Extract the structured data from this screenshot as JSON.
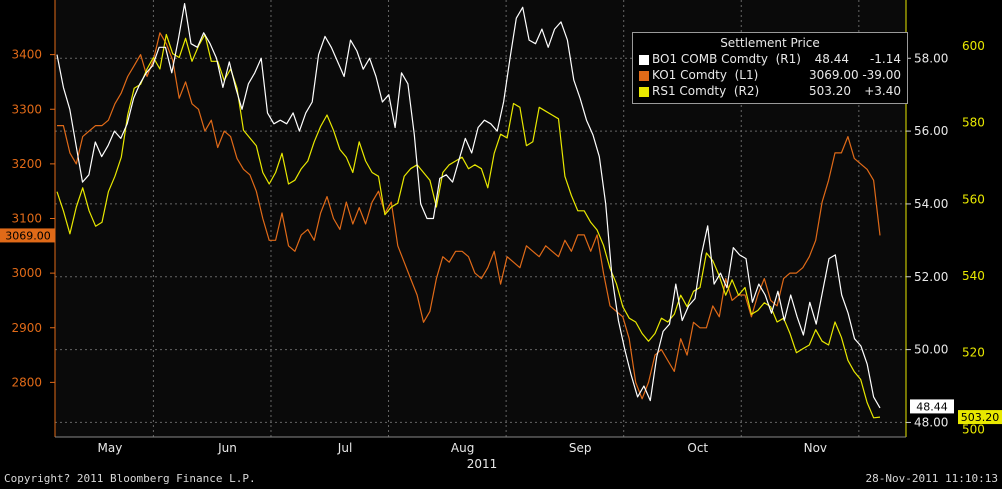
{
  "colors": {
    "background": "#000000",
    "plot_background": "#0a0a0a",
    "white_series": "#ffffff",
    "orange_series": "#e06a18",
    "yellow_series": "#e8e800",
    "left_axis": "#e06a18",
    "right_axis": "#e8e800",
    "grid": "#666666"
  },
  "footer": {
    "copyright": "Copyright? 2011 Bloomberg Finance L.P.",
    "timestamp": "28-Nov-2011 11:10:13"
  },
  "legend": {
    "title": "Settlement Price",
    "items": [
      {
        "name": "BO1 COMB Comdty  (R1)",
        "value": "48.44",
        "change": "-1.14",
        "color": "#ffffff"
      },
      {
        "name": "KO1 Comdty  (L1)",
        "value": "3069.00",
        "change": "-39.00",
        "color": "#e06a18"
      },
      {
        "name": "RS1 Comdty  (R2)",
        "value": "503.20",
        "change": "+3.40",
        "color": "#e8e800"
      }
    ]
  },
  "chart_data": {
    "type": "line",
    "title": "Settlement Price",
    "xlabel": "2011",
    "x_tick_labels": [
      "May",
      "Jun",
      "Jul",
      "Aug",
      "Sep",
      "Oct",
      "Nov"
    ],
    "y_left": {
      "series": "KO1 Comdty",
      "ticks": [
        2800,
        2900,
        3000,
        3100,
        3200,
        3300,
        3400
      ],
      "range": [
        2700,
        3500
      ]
    },
    "y_right1": {
      "series": "BO1 COMB Comdty",
      "ticks": [
        "48.00",
        "50.00",
        "52.00",
        "54.00",
        "56.00",
        "58.00"
      ],
      "range": [
        47.6,
        59.6
      ]
    },
    "y_right2": {
      "series": "RS1 Comdty",
      "ticks": [
        500,
        520,
        540,
        560,
        580,
        600
      ],
      "range": [
        498,
        612
      ]
    },
    "last_value_labels": {
      "left": "3069.00",
      "right1": "48.44",
      "right2": "503.20"
    },
    "grid": true,
    "legend_position": "top-right",
    "series": [
      {
        "name": "BO1 COMB Comdty",
        "axis": "right1",
        "values": [
          58.1,
          57.2,
          56.6,
          55.6,
          54.6,
          54.8,
          55.7,
          55.3,
          55.6,
          56.0,
          55.8,
          56.2,
          56.9,
          57.3,
          57.6,
          57.8,
          58.3,
          58.3,
          57.6,
          58.5,
          59.5,
          58.4,
          58.3,
          58.7,
          58.4,
          58.0,
          57.2,
          57.9,
          57.2,
          56.6,
          57.3,
          57.6,
          58.0,
          56.5,
          56.2,
          56.3,
          56.2,
          56.5,
          56.0,
          56.5,
          56.8,
          58.1,
          58.6,
          58.3,
          57.9,
          57.5,
          58.5,
          58.2,
          57.7,
          58.0,
          57.5,
          56.8,
          57.0,
          56.1,
          57.6,
          57.3,
          55.9,
          54.0,
          53.6,
          53.6,
          54.7,
          54.8,
          54.6,
          55.2,
          55.8,
          55.4,
          56.1,
          56.3,
          56.2,
          56.0,
          56.8,
          58.0,
          59.1,
          59.4,
          58.5,
          58.4,
          58.8,
          58.3,
          58.8,
          59.0,
          58.5,
          57.4,
          56.9,
          56.3,
          55.9,
          55.3,
          54.0,
          52.0,
          50.8,
          50.0,
          49.3,
          48.7,
          49.0,
          48.6,
          49.8,
          50.5,
          50.7,
          51.8,
          50.8,
          51.2,
          51.4,
          52.6,
          53.4,
          51.8,
          52.1,
          51.7,
          52.8,
          52.6,
          52.5,
          51.3,
          51.8,
          51.5,
          51.0,
          51.6,
          50.8,
          51.5,
          50.9,
          50.4,
          51.3,
          50.7,
          51.6,
          52.5,
          52.6,
          51.5,
          51.0,
          50.3,
          50.1,
          49.6,
          48.7,
          48.4
        ]
      },
      {
        "name": "KO1 Comdty",
        "axis": "left",
        "values": [
          3270,
          3270,
          3220,
          3200,
          3250,
          3260,
          3270,
          3270,
          3280,
          3310,
          3330,
          3360,
          3380,
          3400,
          3360,
          3390,
          3440,
          3420,
          3390,
          3320,
          3350,
          3310,
          3300,
          3260,
          3280,
          3230,
          3260,
          3250,
          3210,
          3190,
          3180,
          3150,
          3100,
          3060,
          3060,
          3110,
          3050,
          3040,
          3070,
          3080,
          3060,
          3110,
          3140,
          3100,
          3080,
          3130,
          3090,
          3120,
          3090,
          3130,
          3150,
          3110,
          3130,
          3050,
          3020,
          2990,
          2960,
          2910,
          2930,
          2990,
          3030,
          3020,
          3040,
          3040,
          3030,
          3000,
          2990,
          3010,
          3040,
          2980,
          3030,
          3020,
          3010,
          3050,
          3040,
          3030,
          3050,
          3040,
          3030,
          3060,
          3040,
          3070,
          3070,
          3040,
          3070,
          3000,
          2940,
          2930,
          2920,
          2880,
          2800,
          2770,
          2800,
          2850,
          2860,
          2840,
          2820,
          2880,
          2850,
          2910,
          2900,
          2900,
          2940,
          2920,
          2990,
          2950,
          2960,
          2960,
          2920,
          2960,
          2990,
          2950,
          2940,
          2990,
          3000,
          3000,
          3010,
          3030,
          3060,
          3130,
          3170,
          3220,
          3220,
          3250,
          3210,
          3200,
          3190,
          3170,
          3069
        ]
      },
      {
        "name": "RS1 Comdty",
        "axis": "right2",
        "values": [
          562,
          557,
          551,
          558,
          563,
          557,
          553,
          554,
          562,
          566,
          571,
          582,
          589,
          590,
          594,
          597,
          594,
          603,
          598,
          597,
          602,
          596,
          600,
          603,
          596,
          596,
          591,
          594,
          589,
          578,
          576,
          574,
          567,
          564,
          567,
          572,
          564,
          565,
          568,
          570,
          575,
          579,
          582,
          578,
          573,
          571,
          567,
          575,
          570,
          567,
          566,
          556,
          558,
          559,
          566,
          568,
          569,
          567,
          565,
          558,
          567,
          569,
          570,
          571,
          568,
          569,
          568,
          563,
          572,
          577,
          576,
          585,
          584,
          574,
          575,
          584,
          583,
          582,
          581,
          566,
          561,
          557,
          557,
          554,
          552,
          548,
          542,
          538,
          532,
          529,
          528,
          525,
          523,
          525,
          529,
          528,
          530,
          535,
          532,
          536,
          537,
          546,
          544,
          540,
          535,
          539,
          535,
          537,
          530,
          531,
          533,
          532,
          528,
          529,
          525,
          520,
          521,
          522,
          526,
          523,
          522,
          528,
          524,
          518,
          515,
          513,
          507,
          503,
          503.2
        ]
      }
    ]
  }
}
